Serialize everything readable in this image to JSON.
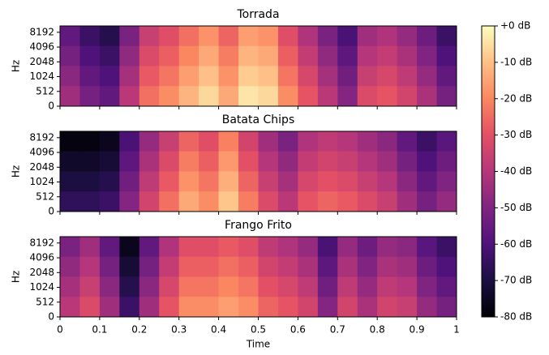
{
  "colorbar": {
    "clim": [
      -80,
      0
    ],
    "colormap": "magma",
    "ticks": [
      {
        "value": 0,
        "label": "+0 dB"
      },
      {
        "value": -10,
        "label": "-10 dB"
      },
      {
        "value": -20,
        "label": "-20 dB"
      },
      {
        "value": -30,
        "label": "-30 dB"
      },
      {
        "value": -40,
        "label": "-40 dB"
      },
      {
        "value": -50,
        "label": "-50 dB"
      },
      {
        "value": -60,
        "label": "-60 dB"
      },
      {
        "value": -70,
        "label": "-70 dB"
      },
      {
        "value": -80,
        "label": "-80 dB"
      }
    ]
  },
  "chart_data": [
    {
      "type": "heatmap",
      "title": "Torrada",
      "ylabel": "Hz",
      "colormap": "magma",
      "xlim": [
        0,
        1
      ],
      "xticks": [
        0,
        0.1,
        0.2,
        0.3,
        0.4,
        0.5,
        0.6,
        0.7,
        0.8,
        0.9,
        1
      ],
      "ylim": [
        0,
        11025
      ],
      "yscale": "symlog",
      "linthresh": 512,
      "base": 2,
      "yticks": [
        0,
        512,
        1024,
        2048,
        4096,
        8192
      ],
      "values": [
        [
          -56,
          -64,
          -68,
          -51,
          -36,
          -31,
          -24,
          -18,
          -26,
          -16,
          -18,
          -31,
          -41,
          -51,
          -61,
          -44,
          -41,
          -46,
          -54,
          -64
        ],
        [
          -52,
          -60,
          -64,
          -47,
          -32,
          -27,
          -20,
          -14,
          -22,
          -12,
          -14,
          -27,
          -37,
          -47,
          -57,
          -40,
          -37,
          -42,
          -50,
          -60
        ],
        [
          -48,
          -56,
          -60,
          -43,
          -28,
          -23,
          -16,
          -10,
          -18,
          -8,
          -10,
          -23,
          -33,
          -43,
          -53,
          -36,
          -33,
          -38,
          -46,
          -56
        ],
        [
          -44,
          -52,
          -56,
          -39,
          -24,
          -19,
          -12,
          -6,
          -14,
          -4,
          -6,
          -19,
          -29,
          -39,
          -49,
          -32,
          -29,
          -34,
          -42,
          -52
        ]
      ]
    },
    {
      "type": "heatmap",
      "title": "Batata Chips",
      "ylabel": "Hz",
      "colormap": "magma",
      "xlim": [
        0,
        1
      ],
      "xticks": [
        0,
        0.1,
        0.2,
        0.3,
        0.4,
        0.5,
        0.6,
        0.7,
        0.8,
        0.9,
        1
      ],
      "ylim": [
        0,
        11025
      ],
      "yscale": "symlog",
      "linthresh": 512,
      "base": 2,
      "yticks": [
        0,
        512,
        1024,
        2048,
        4096,
        8192
      ],
      "values": [
        [
          -78,
          -78,
          -76,
          -61,
          -46,
          -36,
          -26,
          -31,
          -21,
          -34,
          -44,
          -51,
          -41,
          -38,
          -40,
          -44,
          -48,
          -56,
          -64,
          -58
        ],
        [
          -74,
          -74,
          -72,
          -57,
          -42,
          -32,
          -22,
          -27,
          -17,
          -30,
          -40,
          -47,
          -37,
          -34,
          -36,
          -40,
          -44,
          -52,
          -60,
          -54
        ],
        [
          -70,
          -70,
          -68,
          -53,
          -38,
          -28,
          -18,
          -23,
          -13,
          -26,
          -36,
          -43,
          -33,
          -30,
          -32,
          -36,
          -40,
          -48,
          -56,
          -50
        ],
        [
          -66,
          -66,
          -64,
          -49,
          -34,
          -24,
          -14,
          -19,
          -9,
          -22,
          -32,
          -39,
          -29,
          -26,
          -28,
          -32,
          -36,
          -44,
          -52,
          -46
        ]
      ]
    },
    {
      "type": "heatmap",
      "title": "Frango Frito",
      "ylabel": "Hz",
      "xlabel": "Time",
      "colormap": "magma",
      "xlim": [
        0,
        1
      ],
      "xticks": [
        0,
        0.1,
        0.2,
        0.3,
        0.4,
        0.5,
        0.6,
        0.7,
        0.8,
        0.9,
        1
      ],
      "ylim": [
        0,
        11025
      ],
      "yscale": "symlog",
      "linthresh": 512,
      "base": 2,
      "yticks": [
        0,
        512,
        1024,
        2048,
        4096,
        8192
      ],
      "values": [
        [
          -51,
          -44,
          -56,
          -76,
          -56,
          -41,
          -31,
          -31,
          -28,
          -31,
          -38,
          -41,
          -46,
          -61,
          -46,
          -54,
          -46,
          -48,
          -58,
          -64
        ],
        [
          -47,
          -40,
          -52,
          -72,
          -52,
          -37,
          -27,
          -27,
          -24,
          -27,
          -34,
          -37,
          -42,
          -57,
          -42,
          -50,
          -42,
          -44,
          -54,
          -60
        ],
        [
          -43,
          -36,
          -48,
          -68,
          -48,
          -33,
          -23,
          -23,
          -20,
          -23,
          -30,
          -33,
          -38,
          -53,
          -38,
          -46,
          -38,
          -40,
          -50,
          -56
        ],
        [
          -39,
          -32,
          -44,
          -64,
          -44,
          -29,
          -19,
          -19,
          -16,
          -19,
          -26,
          -29,
          -34,
          -49,
          -34,
          -42,
          -34,
          -36,
          -46,
          -52
        ]
      ]
    }
  ]
}
